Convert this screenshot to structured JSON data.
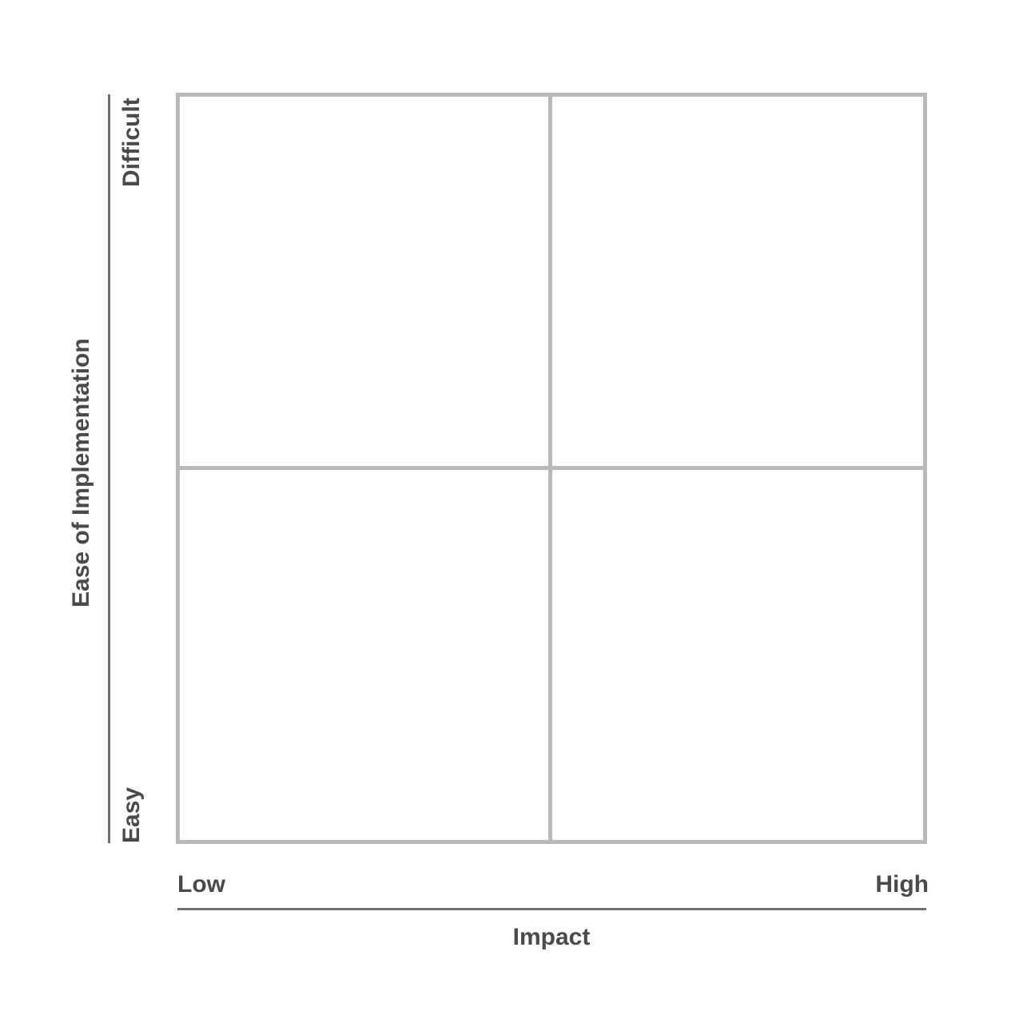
{
  "x_axis": {
    "title": "Impact",
    "low_label": "Low",
    "high_label": "High"
  },
  "y_axis": {
    "title": "Ease of Implementation",
    "low_label": "Easy",
    "high_label": "Difficult"
  },
  "quadrants": [
    {
      "row": "Difficult",
      "column": "Low",
      "label": ""
    },
    {
      "row": "Difficult",
      "column": "High",
      "label": ""
    },
    {
      "row": "Easy",
      "column": "Low",
      "label": ""
    },
    {
      "row": "Easy",
      "column": "High",
      "label": ""
    }
  ],
  "colors": {
    "grid": "#b9b9bb",
    "axis_line": "#6f6f72",
    "text": "#4a4a4d",
    "background": "#ffffff"
  }
}
